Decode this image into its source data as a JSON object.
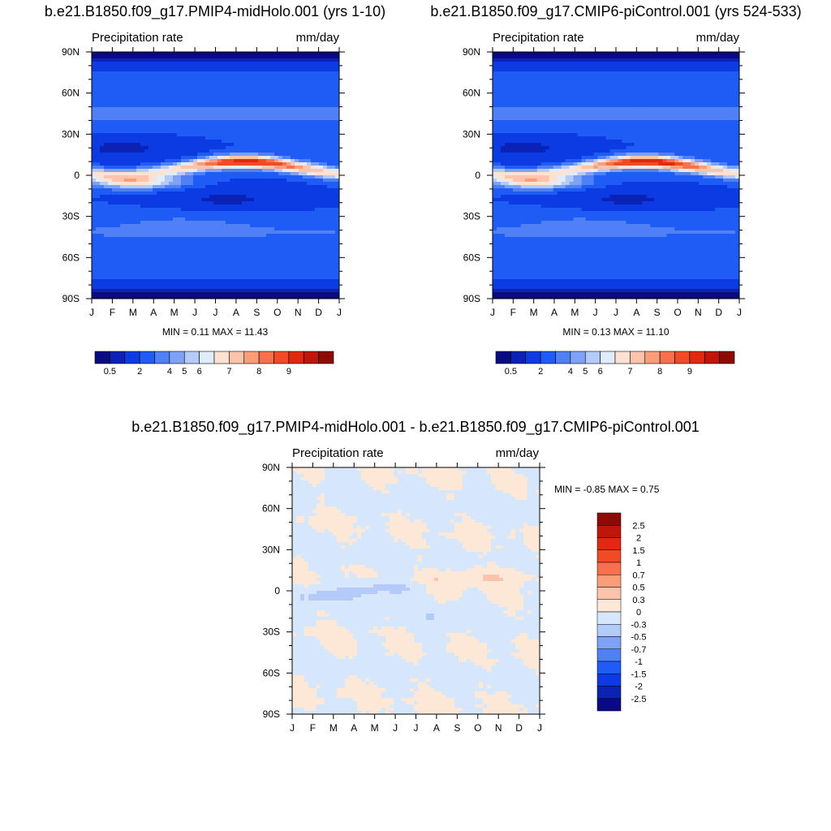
{
  "chart_data": [
    {
      "type": "heatmap",
      "title": "b.e21.B1850.f09_g17.PMIP4-midHolo.001 (yrs 1-10)",
      "left_label": "Precipitation rate",
      "right_label": "mm/day",
      "x_ticks": [
        "J",
        "F",
        "M",
        "A",
        "M",
        "J",
        "J",
        "A",
        "S",
        "O",
        "N",
        "D",
        "J"
      ],
      "y_ticks": [
        "90N",
        "60N",
        "30N",
        "0",
        "30S",
        "60S",
        "90S"
      ],
      "ylim": [
        -90,
        90
      ],
      "stats": "MIN =   0.11 MAX =  11.43",
      "levels": [
        "0.5",
        "2",
        "4",
        "5",
        "6",
        "7",
        "8",
        "9"
      ],
      "min": 0.11,
      "max": 11.43
    },
    {
      "type": "heatmap",
      "title": "b.e21.B1850.f09_g17.CMIP6-piControl.001 (yrs 524-533)",
      "left_label": "Precipitation rate",
      "right_label": "mm/day",
      "x_ticks": [
        "J",
        "F",
        "M",
        "A",
        "M",
        "J",
        "J",
        "A",
        "S",
        "O",
        "N",
        "D",
        "J"
      ],
      "y_ticks": [
        "90N",
        "60N",
        "30N",
        "0",
        "30S",
        "60S",
        "90S"
      ],
      "ylim": [
        -90,
        90
      ],
      "stats": "MIN =   0.13 MAX =  11.10",
      "levels": [
        "0.5",
        "2",
        "4",
        "5",
        "6",
        "7",
        "8",
        "9"
      ],
      "min": 0.13,
      "max": 11.1
    },
    {
      "type": "heatmap",
      "title": "b.e21.B1850.f09_g17.PMIP4-midHolo.001 - b.e21.B1850.f09_g17.CMIP6-piControl.001",
      "left_label": "Precipitation rate",
      "right_label": "mm/day",
      "x_ticks": [
        "J",
        "F",
        "M",
        "A",
        "M",
        "J",
        "J",
        "A",
        "S",
        "O",
        "N",
        "D",
        "J"
      ],
      "y_ticks": [
        "90N",
        "60N",
        "30N",
        "0",
        "30S",
        "60S",
        "90S"
      ],
      "ylim": [
        -90,
        90
      ],
      "stats": "MIN =  -0.85 MAX =   0.75",
      "levels": [
        "2.5",
        "2",
        "1.5",
        "1",
        "0.7",
        "0.5",
        "0.3",
        "0",
        "-0.3",
        "-0.5",
        "-0.7",
        "-1",
        "-1.5",
        "-2",
        "-2.5"
      ],
      "min": -0.85,
      "max": 0.75
    }
  ],
  "colors": {
    "seq": [
      "#0a0a82",
      "#0b22b5",
      "#0c3be4",
      "#1f5cf5",
      "#4f80f5",
      "#7ea3f6",
      "#b4cbf9",
      "#e1ecfb",
      "#fde2d3",
      "#fdc4ab",
      "#fc9d7a",
      "#f8704d",
      "#f14a26",
      "#e0290f",
      "#c0150a",
      "#8e0a05"
    ],
    "div": [
      "#8e0a05",
      "#c0150a",
      "#e0290f",
      "#f14a26",
      "#f8704d",
      "#fc9d7a",
      "#fdc4ab",
      "#fde8d7",
      "#d7e7fb",
      "#b4cbf9",
      "#7ea3f6",
      "#4f80f5",
      "#1f5cf5",
      "#0c3be4",
      "#0b22b5",
      "#0a0a82"
    ]
  }
}
